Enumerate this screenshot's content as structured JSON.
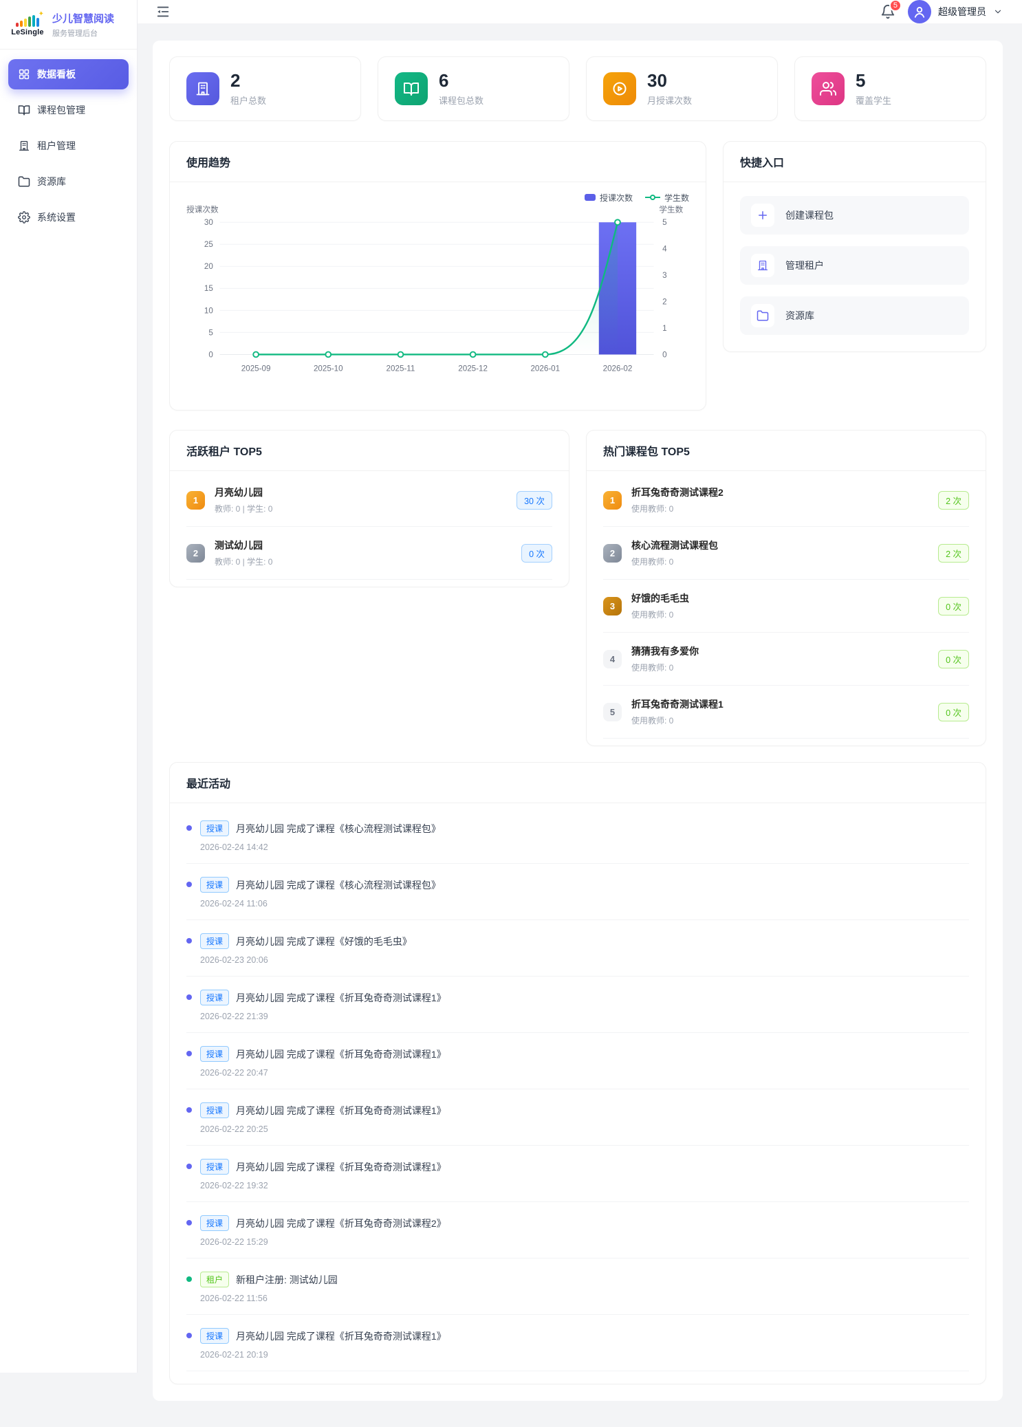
{
  "app": {
    "logo_word": "LeSingle",
    "title": "少儿智慧阅读",
    "subtitle": "服务管理后台"
  },
  "header": {
    "notification_count": "5",
    "user_name": "超级管理员"
  },
  "sidebar": {
    "items": [
      {
        "label": "数据看板",
        "icon": "dashboard",
        "active": true
      },
      {
        "label": "课程包管理",
        "icon": "book"
      },
      {
        "label": "租户管理",
        "icon": "building"
      },
      {
        "label": "资源库",
        "icon": "folder"
      },
      {
        "label": "系统设置",
        "icon": "gear"
      }
    ]
  },
  "stats": [
    {
      "value": "2",
      "label": "租户总数",
      "icon": "building",
      "color": "#6a6df0",
      "color2": "#5558dd"
    },
    {
      "value": "6",
      "label": "课程包总数",
      "icon": "book",
      "color": "#14b886",
      "color2": "#0ea371"
    },
    {
      "value": "30",
      "label": "月授课次数",
      "icon": "play",
      "color": "#f5a30b",
      "color2": "#ee8a06"
    },
    {
      "value": "5",
      "label": "覆盖学生",
      "icon": "users",
      "color": "#ee4f9b",
      "color2": "#dd3583"
    }
  ],
  "chart_card": {
    "title": "使用趋势"
  },
  "chart_data": {
    "type": "bar+line dual-axis",
    "title": "使用趋势",
    "categories": [
      "2025-09",
      "2025-10",
      "2025-11",
      "2025-12",
      "2026-01",
      "2026-02"
    ],
    "series": [
      {
        "name": "授课次数",
        "type": "bar",
        "axis": "left",
        "values": [
          0,
          0,
          0,
          0,
          0,
          30
        ],
        "color": "#5b5fe8"
      },
      {
        "name": "学生数",
        "type": "line",
        "axis": "right",
        "values": [
          0,
          0,
          0,
          0,
          0,
          5
        ],
        "color": "#10b981"
      }
    ],
    "left_axis": {
      "label": "授课次数",
      "min": 0,
      "max": 30,
      "step": 5
    },
    "right_axis": {
      "label": "学生数",
      "min": 0,
      "max": 5,
      "step": 1
    },
    "legend_position": "top-right",
    "grid": "horizontal-only"
  },
  "quick_entry": {
    "title": "快捷入口",
    "items": [
      {
        "label": "创建课程包",
        "icon": "plus"
      },
      {
        "label": "管理租户",
        "icon": "building"
      },
      {
        "label": "资源库",
        "icon": "folder"
      }
    ]
  },
  "active_tenants": {
    "title": "活跃租户 TOP5",
    "items": [
      {
        "rank": "1",
        "name": "月亮幼儿园",
        "meta": "教师: 0 | 学生: 0",
        "count": "30 次"
      },
      {
        "rank": "2",
        "name": "测试幼儿园",
        "meta": "教师: 0 | 学生: 0",
        "count": "0 次"
      }
    ]
  },
  "hot_packages": {
    "title": "热门课程包 TOP5",
    "items": [
      {
        "rank": "1",
        "name": "折耳兔奇奇测试课程2",
        "meta": "使用教师: 0",
        "count": "2 次"
      },
      {
        "rank": "2",
        "name": "核心流程测试课程包",
        "meta": "使用教师: 0",
        "count": "2 次"
      },
      {
        "rank": "3",
        "name": "好饿的毛毛虫",
        "meta": "使用教师: 0",
        "count": "0 次"
      },
      {
        "rank": "4",
        "name": "猜猜我有多爱你",
        "meta": "使用教师: 0",
        "count": "0 次"
      },
      {
        "rank": "5",
        "name": "折耳兔奇奇测试课程1",
        "meta": "使用教师: 0",
        "count": "0 次"
      }
    ]
  },
  "recent": {
    "title": "最近活动",
    "items": [
      {
        "tag": "授课",
        "text": "月亮幼儿园 完成了课程《核心流程测试课程包》",
        "time": "2026-02-24 14:42"
      },
      {
        "tag": "授课",
        "text": "月亮幼儿园 完成了课程《核心流程测试课程包》",
        "time": "2026-02-24 11:06"
      },
      {
        "tag": "授课",
        "text": "月亮幼儿园 完成了课程《好饿的毛毛虫》",
        "time": "2026-02-23 20:06"
      },
      {
        "tag": "授课",
        "text": "月亮幼儿园 完成了课程《折耳兔奇奇测试课程1》",
        "time": "2026-02-22 21:39"
      },
      {
        "tag": "授课",
        "text": "月亮幼儿园 完成了课程《折耳兔奇奇测试课程1》",
        "time": "2026-02-22 20:47"
      },
      {
        "tag": "授课",
        "text": "月亮幼儿园 完成了课程《折耳兔奇奇测试课程1》",
        "time": "2026-02-22 20:25"
      },
      {
        "tag": "授课",
        "text": "月亮幼儿园 完成了课程《折耳兔奇奇测试课程1》",
        "time": "2026-02-22 19:32"
      },
      {
        "tag": "授课",
        "text": "月亮幼儿园 完成了课程《折耳兔奇奇测试课程2》",
        "time": "2026-02-22 15:29"
      },
      {
        "tag": "租户",
        "text": "新租户注册: 测试幼儿园",
        "time": "2026-02-22 11:56"
      },
      {
        "tag": "授课",
        "text": "月亮幼儿园 完成了课程《折耳兔奇奇测试课程1》",
        "time": "2026-02-21 20:19"
      }
    ]
  }
}
